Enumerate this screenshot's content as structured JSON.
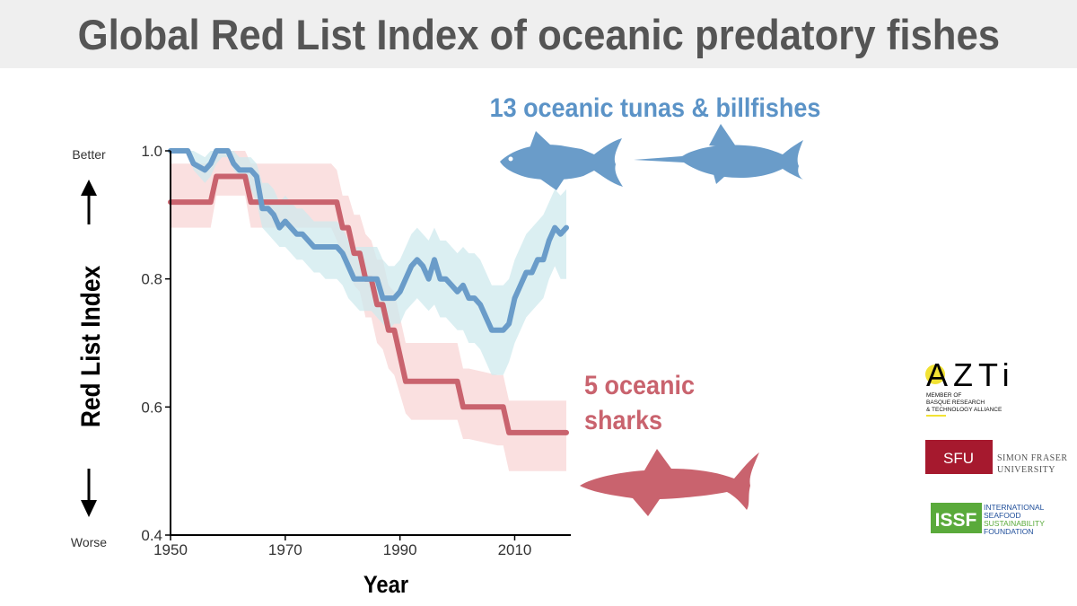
{
  "title": "Global Red List Index of oceanic predatory fishes",
  "chart_data": {
    "type": "line",
    "title": "Global Red List Index of oceanic predatory fishes",
    "xlabel": "Year",
    "ylabel": "Red List Index",
    "xlim": [
      1950,
      2019
    ],
    "ylim": [
      0.4,
      1.0
    ],
    "xticks": [
      "1950",
      "1970",
      "1990",
      "2010"
    ],
    "yticks": [
      "0.4",
      "0.6",
      "0.8",
      "1.0"
    ],
    "y_top_label": "Better",
    "y_bottom_label": "Worse",
    "grid": false,
    "series": [
      {
        "name": "13 oceanic tunas & billfishes",
        "color": "#6a9cc9",
        "band_color": "#cfe9ee",
        "x": [
          1950,
          1953,
          1954,
          1956,
          1957,
          1958,
          1959,
          1960,
          1961,
          1962,
          1963,
          1964,
          1965,
          1966,
          1967,
          1968,
          1969,
          1970,
          1971,
          1972,
          1973,
          1974,
          1975,
          1976,
          1977,
          1978,
          1979,
          1980,
          1981,
          1982,
          1983,
          1984,
          1985,
          1986,
          1987,
          1988,
          1989,
          1990,
          1991,
          1992,
          1993,
          1994,
          1995,
          1996,
          1997,
          1998,
          1999,
          2000,
          2001,
          2002,
          2003,
          2004,
          2005,
          2006,
          2007,
          2008,
          2009,
          2010,
          2011,
          2012,
          2013,
          2014,
          2015,
          2016,
          2017,
          2018,
          2019
        ],
        "y": [
          1.0,
          1.0,
          0.98,
          0.97,
          0.98,
          1.0,
          1.0,
          1.0,
          0.98,
          0.97,
          0.97,
          0.97,
          0.96,
          0.91,
          0.91,
          0.9,
          0.88,
          0.89,
          0.88,
          0.87,
          0.87,
          0.86,
          0.85,
          0.85,
          0.85,
          0.85,
          0.85,
          0.84,
          0.82,
          0.8,
          0.8,
          0.8,
          0.8,
          0.8,
          0.77,
          0.77,
          0.77,
          0.78,
          0.8,
          0.82,
          0.83,
          0.82,
          0.8,
          0.83,
          0.8,
          0.8,
          0.79,
          0.78,
          0.79,
          0.77,
          0.77,
          0.76,
          0.74,
          0.72,
          0.72,
          0.72,
          0.73,
          0.77,
          0.79,
          0.81,
          0.81,
          0.83,
          0.83,
          0.86,
          0.88,
          0.87,
          0.88
        ],
        "lower": [
          1.0,
          1.0,
          0.97,
          0.95,
          0.96,
          0.98,
          0.99,
          0.99,
          0.97,
          0.96,
          0.95,
          0.94,
          0.92,
          0.88,
          0.87,
          0.86,
          0.85,
          0.85,
          0.84,
          0.83,
          0.83,
          0.82,
          0.81,
          0.81,
          0.8,
          0.8,
          0.8,
          0.79,
          0.77,
          0.76,
          0.75,
          0.75,
          0.75,
          0.74,
          0.73,
          0.72,
          0.73,
          0.73,
          0.75,
          0.76,
          0.77,
          0.76,
          0.75,
          0.76,
          0.74,
          0.74,
          0.73,
          0.72,
          0.72,
          0.7,
          0.7,
          0.69,
          0.67,
          0.65,
          0.65,
          0.65,
          0.67,
          0.7,
          0.72,
          0.74,
          0.75,
          0.76,
          0.77,
          0.8,
          0.82,
          0.8,
          0.8
        ],
        "upper": [
          1.0,
          1.0,
          1.0,
          0.99,
          1.0,
          1.0,
          1.0,
          1.0,
          1.0,
          0.99,
          0.99,
          0.99,
          0.98,
          0.95,
          0.95,
          0.94,
          0.92,
          0.93,
          0.92,
          0.91,
          0.91,
          0.9,
          0.89,
          0.89,
          0.89,
          0.89,
          0.89,
          0.88,
          0.86,
          0.85,
          0.85,
          0.85,
          0.85,
          0.85,
          0.83,
          0.82,
          0.82,
          0.83,
          0.85,
          0.87,
          0.88,
          0.87,
          0.86,
          0.88,
          0.86,
          0.86,
          0.85,
          0.84,
          0.85,
          0.84,
          0.84,
          0.83,
          0.81,
          0.79,
          0.79,
          0.79,
          0.8,
          0.83,
          0.85,
          0.87,
          0.88,
          0.89,
          0.9,
          0.92,
          0.94,
          0.93,
          0.94
        ]
      },
      {
        "name": "5 oceanic sharks",
        "color": "#c9636e",
        "band_color": "#f8d5d5",
        "x": [
          1950,
          1957,
          1958,
          1962,
          1963,
          1964,
          1978,
          1979,
          1980,
          1981,
          1982,
          1983,
          1984,
          1985,
          1986,
          1987,
          1988,
          1989,
          1990,
          1991,
          1992,
          2000,
          2001,
          2002,
          2007,
          2008,
          2009,
          2019
        ],
        "y": [
          0.92,
          0.92,
          0.96,
          0.96,
          0.96,
          0.92,
          0.92,
          0.92,
          0.88,
          0.88,
          0.84,
          0.84,
          0.8,
          0.8,
          0.76,
          0.76,
          0.72,
          0.72,
          0.68,
          0.64,
          0.64,
          0.64,
          0.6,
          0.6,
          0.6,
          0.6,
          0.56,
          0.56
        ],
        "lower": [
          0.88,
          0.88,
          0.93,
          0.93,
          0.93,
          0.88,
          0.88,
          0.86,
          0.84,
          0.83,
          0.79,
          0.78,
          0.74,
          0.74,
          0.7,
          0.69,
          0.66,
          0.65,
          0.62,
          0.59,
          0.58,
          0.58,
          0.55,
          0.55,
          0.54,
          0.54,
          0.5,
          0.5
        ],
        "upper": [
          0.98,
          0.98,
          1.0,
          1.0,
          1.0,
          0.98,
          0.98,
          0.97,
          0.93,
          0.93,
          0.9,
          0.9,
          0.87,
          0.86,
          0.83,
          0.83,
          0.79,
          0.78,
          0.74,
          0.7,
          0.7,
          0.7,
          0.66,
          0.66,
          0.65,
          0.65,
          0.61,
          0.61
        ]
      }
    ],
    "annotations": [
      {
        "text": "13 oceanic tunas & billfishes",
        "color": "#5b93c7"
      },
      {
        "text": "5 oceanic",
        "color": "#c9636e"
      },
      {
        "text": "sharks",
        "color": "#c9636e"
      }
    ]
  },
  "icons": [
    "tuna-icon",
    "marlin-icon",
    "shark-icon"
  ],
  "logos": {
    "azti": {
      "name": "AZTi",
      "line1": "MEMBER OF",
      "line2": "BASQUE RESEARCH",
      "line3": "& TECHNOLOGY ALLIANCE",
      "accent": "#f2e234"
    },
    "sfu": {
      "badge": "SFU",
      "line1": "SIMON FRASER",
      "line2": "UNIVERSITY",
      "color": "#a6192e"
    },
    "issf": {
      "badge": "ISSF",
      "line1": "INTERNATIONAL",
      "line2": "SEAFOOD",
      "line3": "SUSTAINABILITY",
      "line4": "FOUNDATION",
      "green": "#5aaa3b",
      "blue": "#1f4e9a"
    }
  }
}
